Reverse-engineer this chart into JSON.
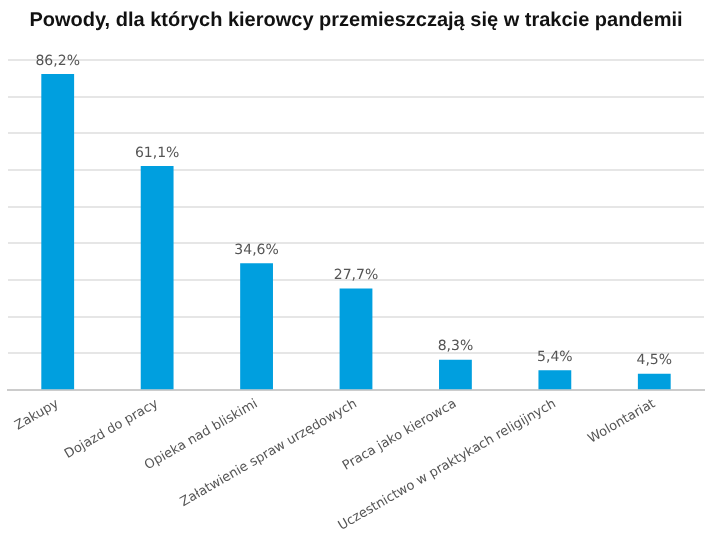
{
  "chart_data": {
    "type": "bar",
    "title": "Powody, dla których kierowcy przemieszczają się w trakcie pandemii",
    "categories": [
      "Zakupy",
      "Dojazd do pracy",
      "Opieka nad bliskimi",
      "Załatwienie spraw urzędowych",
      "Praca jako kierowca",
      "Uczestnictwo w praktykach religijnych",
      "Wolontariat"
    ],
    "values": [
      86.2,
      61.1,
      34.6,
      27.7,
      8.3,
      5.4,
      4.5
    ],
    "value_labels": [
      "86,2%",
      "61,1%",
      "34,6%",
      "27,7%",
      "8,3%",
      "5,4%",
      "4,5%"
    ],
    "color": "#009fdf",
    "grid": "y",
    "tick_labels": "x",
    "legend": false
  }
}
